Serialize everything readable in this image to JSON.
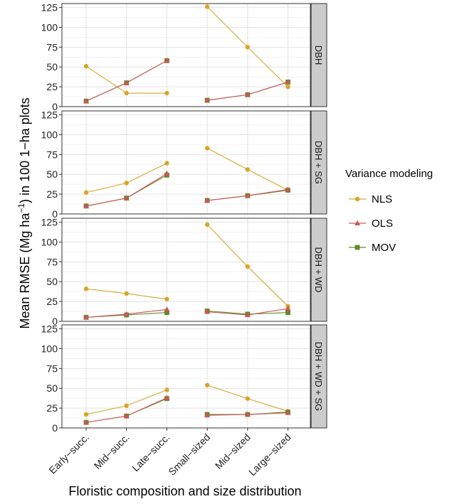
{
  "chart_data": {
    "type": "line",
    "xlabel": "Floristic composition and size distribution",
    "ylabel_main": "Mean RMSE (Mg ha",
    "ylabel_sup": "−1",
    "ylabel_tail": ") in 100 1−ha plots",
    "categories": [
      "Early−succ.",
      "Mid−succ.",
      "Late−succ.",
      "Small−sized",
      "Mid−sized",
      "Large−sized"
    ],
    "groups": [
      [
        0,
        1,
        2
      ],
      [
        3,
        4,
        5
      ]
    ],
    "ylim": [
      0,
      130
    ],
    "yticks": [
      "0",
      "25",
      "50",
      "75",
      "100",
      "125"
    ],
    "ytick_values": [
      0,
      25,
      50,
      75,
      100,
      125
    ],
    "legend": {
      "title": "Variance modeling",
      "placement": "right",
      "entries": [
        "NLS",
        "OLS",
        "MOV"
      ]
    },
    "series_colors": {
      "NLS": "#D4A62A",
      "OLS": "#C9575A",
      "MOV": "#5E8B27"
    },
    "series_shapes": {
      "NLS": "circle",
      "OLS": "triangle",
      "MOV": "square"
    },
    "panels": [
      {
        "label": "DBH",
        "series": [
          {
            "name": "NLS",
            "values": [
              51,
              17,
              17,
              126,
              75,
              25
            ]
          },
          {
            "name": "OLS",
            "values": [
              7,
              30,
              58,
              8,
              15,
              31
            ]
          },
          {
            "name": "MOV",
            "values": [
              7,
              30,
              58,
              8,
              15,
              31
            ]
          }
        ]
      },
      {
        "label": "DBH + SG",
        "series": [
          {
            "name": "NLS",
            "values": [
              27,
              39,
              64,
              83,
              56,
              30
            ]
          },
          {
            "name": "OLS",
            "values": [
              10,
              20,
              51,
              17,
              23,
              31
            ]
          },
          {
            "name": "MOV",
            "values": [
              10,
              20,
              49,
              17,
              23,
              30
            ]
          }
        ]
      },
      {
        "label": "DBH + WD",
        "series": [
          {
            "name": "NLS",
            "values": [
              41,
              35,
              28,
              122,
              69,
              19
            ]
          },
          {
            "name": "OLS",
            "values": [
              5,
              9,
              15,
              12,
              8,
              16
            ]
          },
          {
            "name": "MOV",
            "values": [
              5,
              8,
              11,
              13,
              9,
              11
            ]
          }
        ]
      },
      {
        "label": "DBH + WD + SG",
        "series": [
          {
            "name": "NLS",
            "values": [
              17,
              28,
              48,
              54,
              37,
              21
            ]
          },
          {
            "name": "OLS",
            "values": [
              7,
              15,
              38,
              16,
              17,
              19
            ]
          },
          {
            "name": "MOV",
            "values": [
              7,
              15,
              37,
              17,
              17,
              20
            ]
          }
        ]
      }
    ]
  }
}
